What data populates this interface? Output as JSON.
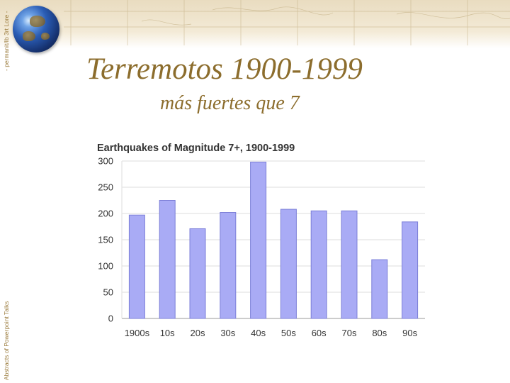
{
  "slide": {
    "title": "Terremotos 1900-1999",
    "subtitle": "más fuertes que 7",
    "credit_top": "- permanit/Ib 3rt Lore -",
    "credit_bottom": "Abstracts of Powerpoint Talks",
    "colors": {
      "title": "#8c6d2d",
      "bar_fill": "#a9abf5",
      "bar_stroke": "#7c7fd8"
    },
    "icons": [
      "globe-icon"
    ]
  },
  "chart_data": {
    "type": "bar",
    "title": "Earthquakes of Magnitude 7+, 1900-1999",
    "xlabel": "",
    "ylabel": "",
    "categories": [
      "1900s",
      "10s",
      "20s",
      "30s",
      "40s",
      "50s",
      "60s",
      "70s",
      "80s",
      "90s"
    ],
    "values": [
      197,
      225,
      171,
      202,
      298,
      208,
      205,
      205,
      112,
      184
    ],
    "ylim": [
      0,
      300
    ],
    "yticks": [
      0,
      50,
      100,
      150,
      200,
      250,
      300
    ],
    "grid": true,
    "legend": "none"
  }
}
